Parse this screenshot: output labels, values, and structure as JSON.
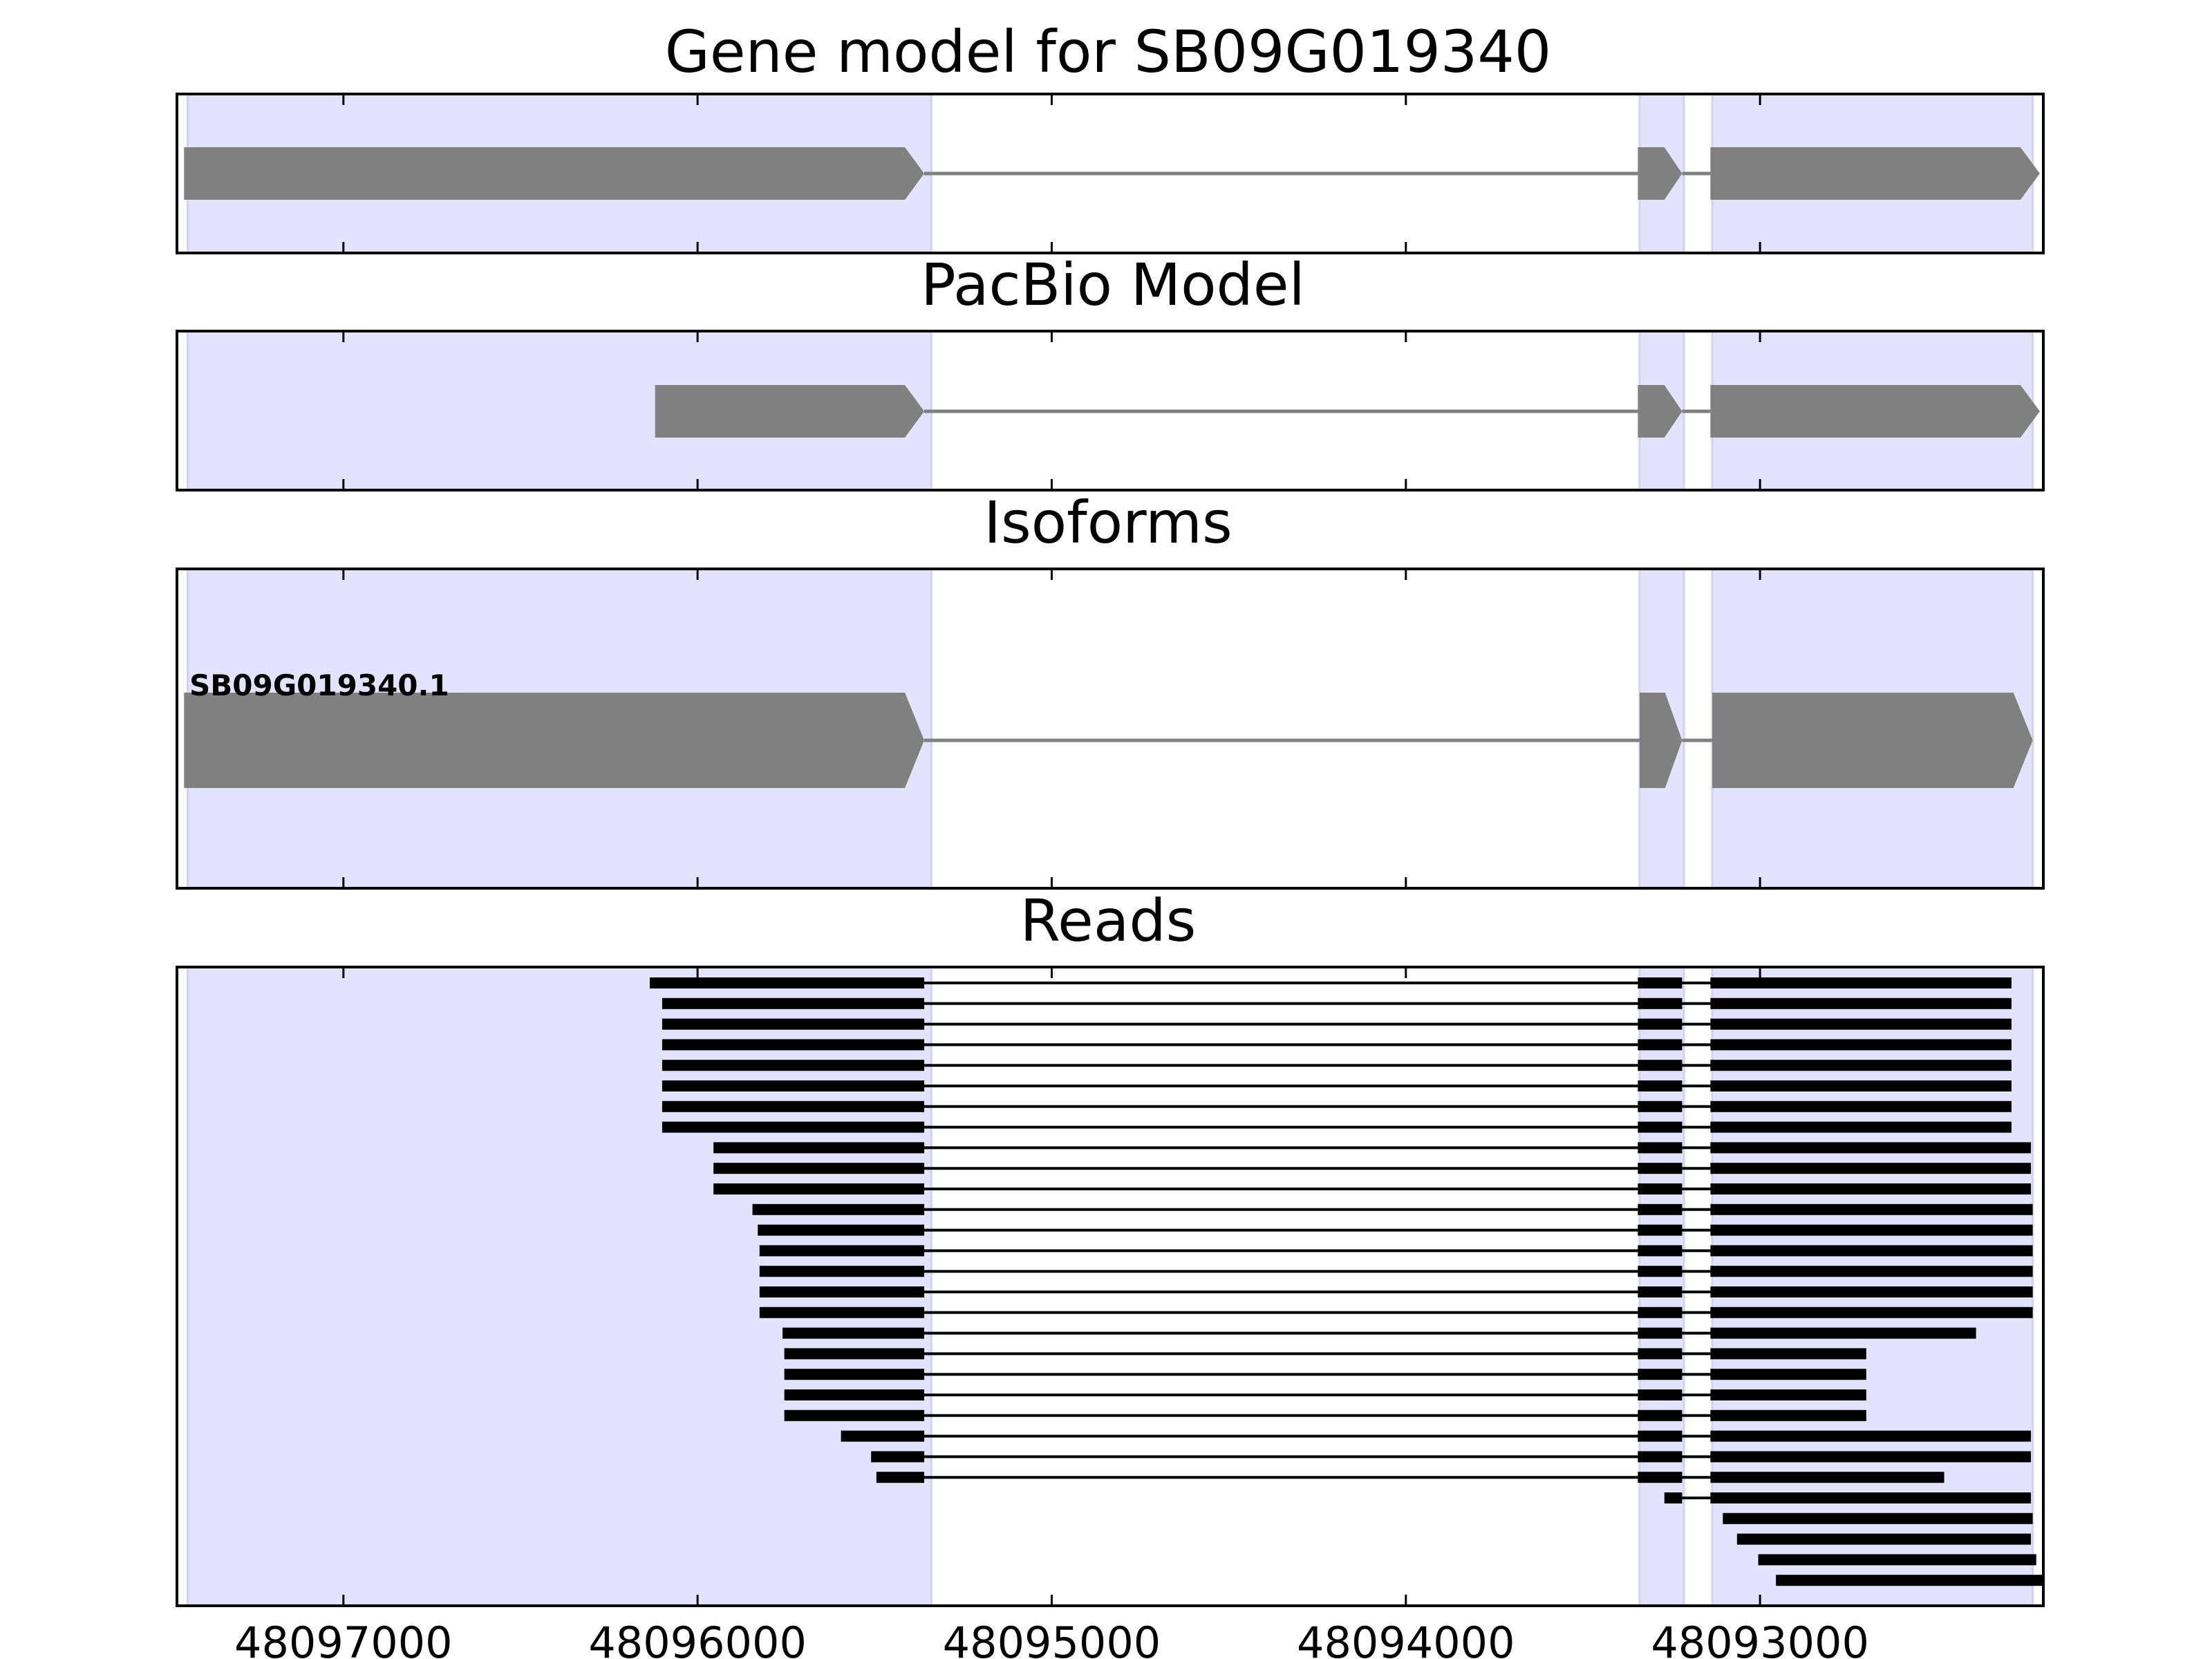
{
  "chart_data": {
    "type": "gene-track",
    "x_axis": {
      "reversed": true,
      "xlim": [
        48097470,
        48092200
      ],
      "tick_values": [
        48097000,
        48096000,
        48095000,
        48094000,
        48093000
      ],
      "tick_labels": [
        "48097000",
        "48096000",
        "48095000",
        "48094000",
        "48093000"
      ]
    },
    "exon_highlights": [
      {
        "start": 48097440,
        "end": 48095340
      },
      {
        "start": 48093340,
        "end": 48093215
      },
      {
        "start": 48093135,
        "end": 48092230
      }
    ],
    "colors": {
      "highlight": "#e3e3fd",
      "model": "#808080",
      "reads": "#000000"
    },
    "panels": [
      {
        "title": "Gene model for SB09G019340",
        "exons": [
          {
            "start": 48097450,
            "end": 48095360
          },
          {
            "start": 48093345,
            "end": 48093220
          },
          {
            "start": 48093140,
            "end": 48092210
          }
        ]
      },
      {
        "title": "PacBio Model",
        "exons": [
          {
            "start": 48096120,
            "end": 48095360
          },
          {
            "start": 48093345,
            "end": 48093220
          },
          {
            "start": 48093140,
            "end": 48092210
          }
        ]
      },
      {
        "title": "Isoforms",
        "isoforms": [
          {
            "name": "SB09G019340.1",
            "exons": [
              {
                "start": 48097450,
                "end": 48095360
              },
              {
                "start": 48093340,
                "end": 48093220
              },
              {
                "start": 48093135,
                "end": 48092230
              }
            ]
          }
        ]
      },
      {
        "title": "Reads",
        "reads": [
          {
            "start": 48096135,
            "end": 48092290
          },
          {
            "start": 48096100,
            "end": 48092290
          },
          {
            "start": 48096100,
            "end": 48092290
          },
          {
            "start": 48096100,
            "end": 48092290
          },
          {
            "start": 48096100,
            "end": 48092290
          },
          {
            "start": 48096100,
            "end": 48092290
          },
          {
            "start": 48096100,
            "end": 48092290
          },
          {
            "start": 48096100,
            "end": 48092290
          },
          {
            "start": 48095955,
            "end": 48092235
          },
          {
            "start": 48095955,
            "end": 48092235
          },
          {
            "start": 48095955,
            "end": 48092235
          },
          {
            "start": 48095845,
            "end": 48092230
          },
          {
            "start": 48095830,
            "end": 48092230
          },
          {
            "start": 48095825,
            "end": 48092230
          },
          {
            "start": 48095825,
            "end": 48092230
          },
          {
            "start": 48095825,
            "end": 48092230
          },
          {
            "start": 48095825,
            "end": 48092230
          },
          {
            "start": 48095760,
            "end": 48092390
          },
          {
            "start": 48095755,
            "end": 48092700
          },
          {
            "start": 48095755,
            "end": 48092700
          },
          {
            "start": 48095755,
            "end": 48092700
          },
          {
            "start": 48095755,
            "end": 48092700
          },
          {
            "start": 48095595,
            "end": 48092235
          },
          {
            "start": 48095510,
            "end": 48092235
          },
          {
            "start": 48095495,
            "end": 48092480
          },
          {
            "start": 48093270,
            "end": 48092235
          },
          {
            "start": 48093105,
            "end": 48092230
          },
          {
            "start": 48093065,
            "end": 48092235
          },
          {
            "start": 48093005,
            "end": 48092220
          },
          {
            "start": 48092955,
            "end": 48092200
          }
        ]
      }
    ]
  }
}
